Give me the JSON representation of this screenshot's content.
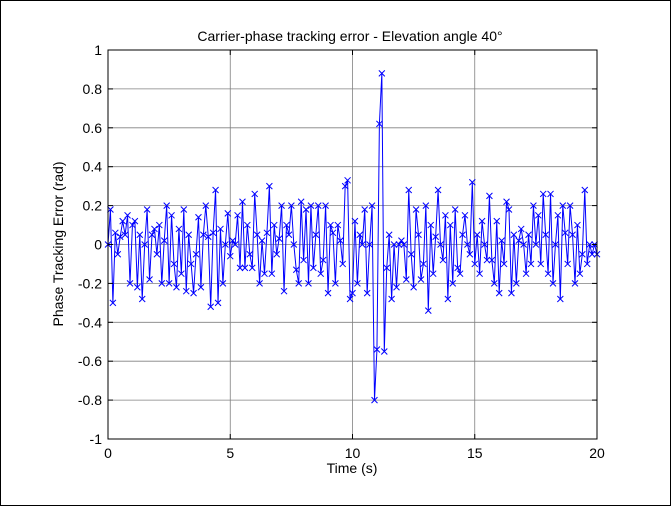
{
  "chart_data": {
    "type": "line",
    "title": "Carrier-phase tracking error - Elevation angle 40°",
    "xlabel": "Time (s)",
    "ylabel": "Phase Tracking Error (rad)",
    "xlim": [
      0,
      20
    ],
    "ylim": [
      -1,
      1
    ],
    "xticks": [
      "0",
      "5",
      "10",
      "15",
      "20"
    ],
    "yticks": [
      "-1",
      "-0.8",
      "-0.6",
      "-0.4",
      "-0.2",
      "0",
      "0.2",
      "0.4",
      "0.6",
      "0.8",
      "1"
    ],
    "grid": true,
    "marker": "x",
    "line_color": "#0000ff",
    "series": [
      {
        "x": [
          0.0,
          0.1,
          0.2,
          0.3,
          0.4,
          0.5,
          0.6,
          0.7,
          0.8,
          0.9,
          1.0,
          1.1,
          1.2,
          1.3,
          1.4,
          1.5,
          1.6,
          1.7,
          1.8,
          1.9,
          2.0,
          2.1,
          2.2,
          2.3,
          2.4,
          2.5,
          2.6,
          2.7,
          2.8,
          2.9,
          3.0,
          3.1,
          3.2,
          3.3,
          3.4,
          3.5,
          3.6,
          3.7,
          3.8,
          3.9,
          4.0,
          4.1,
          4.2,
          4.3,
          4.4,
          4.5,
          4.6,
          4.7,
          4.8,
          4.9,
          5.0,
          5.1,
          5.2,
          5.3,
          5.4,
          5.5,
          5.6,
          5.7,
          5.8,
          5.9,
          6.0,
          6.1,
          6.2,
          6.3,
          6.4,
          6.5,
          6.6,
          6.7,
          6.8,
          6.9,
          7.0,
          7.1,
          7.2,
          7.3,
          7.4,
          7.5,
          7.6,
          7.7,
          7.8,
          7.9,
          8.0,
          8.1,
          8.2,
          8.3,
          8.4,
          8.5,
          8.6,
          8.7,
          8.8,
          8.9,
          9.0,
          9.1,
          9.2,
          9.3,
          9.4,
          9.5,
          9.6,
          9.7,
          9.8,
          9.9,
          10.0,
          10.1,
          10.2,
          10.3,
          10.4,
          10.5,
          10.6,
          10.7,
          10.8,
          10.9,
          11.0,
          11.1,
          11.2,
          11.3,
          11.4,
          11.5,
          11.6,
          11.7,
          11.8,
          11.9,
          12.0,
          12.1,
          12.2,
          12.3,
          12.4,
          12.5,
          12.6,
          12.7,
          12.8,
          12.9,
          13.0,
          13.1,
          13.2,
          13.3,
          13.4,
          13.5,
          13.6,
          13.7,
          13.8,
          13.9,
          14.0,
          14.1,
          14.2,
          14.3,
          14.4,
          14.5,
          14.6,
          14.7,
          14.8,
          14.9,
          15.0,
          15.1,
          15.2,
          15.3,
          15.4,
          15.5,
          15.6,
          15.7,
          15.8,
          15.9,
          16.0,
          16.1,
          16.2,
          16.3,
          16.4,
          16.5,
          16.6,
          16.7,
          16.8,
          16.9,
          17.0,
          17.1,
          17.2,
          17.3,
          17.4,
          17.5,
          17.6,
          17.7,
          17.8,
          17.9,
          18.0,
          18.1,
          18.2,
          18.3,
          18.4,
          18.5,
          18.6,
          18.7,
          18.8,
          18.9,
          19.0,
          19.1,
          19.2,
          19.3,
          19.4,
          19.5,
          19.6,
          19.7,
          19.8,
          19.9,
          20.0
        ],
        "values": [
          0.0,
          0.18,
          -0.3,
          0.06,
          -0.05,
          0.04,
          0.12,
          0.05,
          0.15,
          -0.2,
          0.1,
          0.12,
          -0.22,
          0.05,
          -0.28,
          0.0,
          0.18,
          -0.18,
          0.05,
          0.08,
          -0.05,
          0.1,
          -0.2,
          0.02,
          0.2,
          -0.2,
          0.15,
          -0.1,
          -0.22,
          0.08,
          -0.15,
          0.18,
          -0.24,
          0.05,
          -0.1,
          -0.25,
          -0.05,
          0.14,
          -0.22,
          0.05,
          0.2,
          0.04,
          -0.32,
          0.06,
          0.28,
          -0.3,
          0.08,
          -0.2,
          0.0,
          0.16,
          -0.06,
          0.02,
          0.0,
          0.15,
          -0.12,
          0.22,
          -0.12,
          0.1,
          -0.05,
          -0.12,
          0.26,
          0.05,
          -0.2,
          0.02,
          -0.15,
          0.06,
          0.3,
          -0.15,
          0.1,
          -0.05,
          0.03,
          0.2,
          -0.24,
          0.1,
          0.05,
          0.2,
          0.0,
          -0.13,
          -0.2,
          0.22,
          -0.08,
          0.18,
          -0.2,
          0.2,
          -0.12,
          0.05,
          0.2,
          -0.15,
          -0.08,
          0.2,
          -0.25,
          0.1,
          0.06,
          -0.2,
          0.1,
          0.02,
          -0.1,
          0.3,
          0.33,
          -0.28,
          -0.25,
          0.12,
          -0.2,
          0.05,
          0.0,
          0.18,
          -0.25,
          0.0,
          0.2,
          -0.8,
          -0.54,
          0.62,
          0.88,
          -0.55,
          -0.12,
          0.05,
          -0.28,
          0.0,
          -0.22,
          0.0,
          0.02,
          0.0,
          -0.18,
          0.28,
          -0.05,
          -0.22,
          0.18,
          0.05,
          -0.18,
          -0.1,
          0.2,
          -0.34,
          0.1,
          -0.15,
          0.04,
          0.28,
          0.0,
          -0.08,
          0.15,
          -0.28,
          0.1,
          -0.2,
          0.18,
          -0.12,
          -0.15,
          0.05,
          0.15,
          0.0,
          -0.05,
          0.32,
          -0.1,
          0.05,
          -0.15,
          0.12,
          0.0,
          -0.08,
          0.25,
          -0.08,
          -0.2,
          0.12,
          -0.25,
          0.02,
          -0.1,
          0.22,
          0.18,
          -0.25,
          0.05,
          -0.2,
          0.02,
          0.08,
          0.0,
          -0.15,
          0.05,
          -0.1,
          0.2,
          0.0,
          0.15,
          -0.1,
          0.26,
          0.05,
          -0.15,
          0.26,
          -0.2,
          0.0,
          0.15,
          -0.28,
          0.2,
          0.06,
          -0.1,
          0.2,
          0.05,
          -0.2,
          0.1,
          -0.15,
          -0.05,
          0.28,
          -0.1,
          0.0,
          -0.05,
          0.0,
          -0.05
        ]
      }
    ]
  }
}
